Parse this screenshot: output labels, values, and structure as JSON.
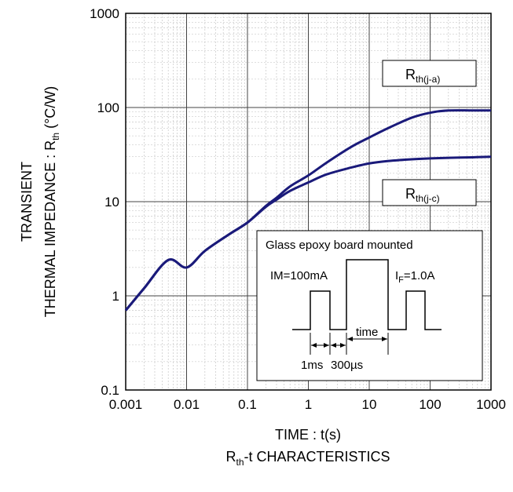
{
  "chart_data": {
    "type": "line",
    "xscale": "log",
    "yscale": "log",
    "xlim": [
      0.001,
      1000
    ],
    "ylim": [
      0.1,
      1000
    ],
    "grid": true,
    "x_ticks": [
      "0.001",
      "0.01",
      "0.1",
      "1",
      "10",
      "100",
      "1000"
    ],
    "y_ticks": [
      "0.1",
      "1",
      "10",
      "100",
      "1000"
    ],
    "xlabel": "TIME : t(s)",
    "ylabel_line1": "TRANSIENT",
    "ylabel_line2_main": "THERMAL IMPEDANCE : R",
    "ylabel_line2_sub": "th",
    "ylabel_line2_unit": " (°C/W)",
    "caption_main": "R",
    "caption_sub": "th",
    "caption_rest": "-t CHARACTERISTICS",
    "series": [
      {
        "name_main": "R",
        "name_sub": "th(j-a)",
        "color": "#1a1a7a",
        "x": [
          0.001,
          0.002,
          0.005,
          0.01,
          0.02,
          0.05,
          0.1,
          0.2,
          0.3,
          0.5,
          1,
          2,
          5,
          10,
          20,
          50,
          100,
          200,
          500,
          1000
        ],
        "y": [
          0.7,
          1.2,
          2.4,
          2.0,
          3.0,
          4.5,
          6.0,
          9.0,
          11.0,
          14.5,
          19.0,
          26.0,
          38.0,
          48.0,
          60.0,
          78.0,
          88.0,
          93.0,
          93.0,
          93.0
        ]
      },
      {
        "name_main": "R",
        "name_sub": "th(j-c)",
        "color": "#1a1a7a",
        "x": [
          0.001,
          0.002,
          0.005,
          0.01,
          0.02,
          0.05,
          0.1,
          0.2,
          0.3,
          0.5,
          1,
          2,
          5,
          10,
          20,
          50,
          100,
          200,
          500,
          1000
        ],
        "y": [
          0.7,
          1.2,
          2.4,
          2.0,
          3.0,
          4.5,
          6.0,
          8.8,
          10.5,
          13.0,
          16.0,
          19.5,
          23.0,
          25.5,
          27.0,
          28.2,
          28.8,
          29.2,
          29.6,
          30.0
        ]
      }
    ],
    "inset": {
      "title": "Glass epoxy board mounted",
      "im_label": "IM=100mA",
      "if_main": "I",
      "if_sub": "F",
      "if_rest": "=1.0A",
      "time_label": "time",
      "t1_label": "1ms",
      "t2_label": "300µs"
    }
  }
}
